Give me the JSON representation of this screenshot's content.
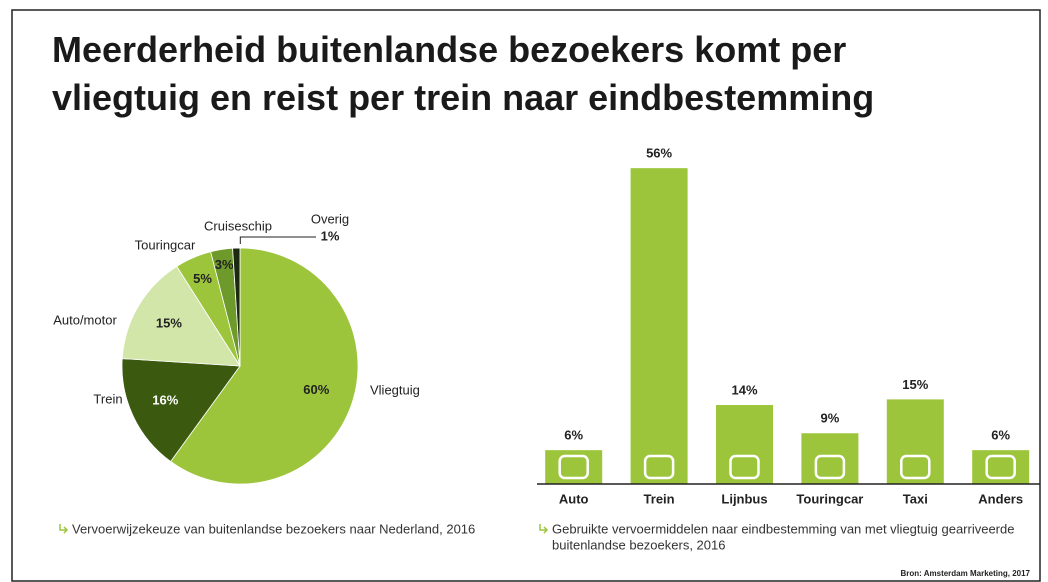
{
  "title_lines": [
    "Meerderheid buitenlandse bezoekers komt per",
    "vliegtuig en reist per trein naar eindbestemming"
  ],
  "source": "Bron: Amsterdam Marketing, 2017",
  "chart_data": [
    {
      "type": "pie",
      "categories": [
        "Vliegtuig",
        "Trein",
        "Auto/motor",
        "Touringcar",
        "Cruiseschip",
        "Overig"
      ],
      "values": [
        60,
        16,
        15,
        5,
        3,
        1
      ],
      "value_labels": [
        "60%",
        "16%",
        "15%",
        "5%",
        "3%",
        "1%"
      ],
      "colors": [
        "#9cc53c",
        "#3b5a10",
        "#d3e6a9",
        "#9cc53c",
        "#6e9a2c",
        "#1c2a12"
      ],
      "caption_lines": [
        "Vervoerwijzekeuze van buitenlandse bezoekers naar Nederland, 2016"
      ]
    },
    {
      "type": "bar",
      "categories": [
        "Auto",
        "Trein",
        "Lijnbus",
        "Touringcar",
        "Taxi",
        "Anders"
      ],
      "values": [
        6,
        56,
        14,
        9,
        15,
        6
      ],
      "value_labels": [
        "6%",
        "56%",
        "14%",
        "9%",
        "15%",
        "6%"
      ],
      "color": "#9cc53c",
      "caption_lines": [
        "Gebruikte vervoermiddelen naar eindbestemming van met vliegtuig gearriveerde",
        "buitenlandse bezoekers, 2016"
      ]
    }
  ]
}
